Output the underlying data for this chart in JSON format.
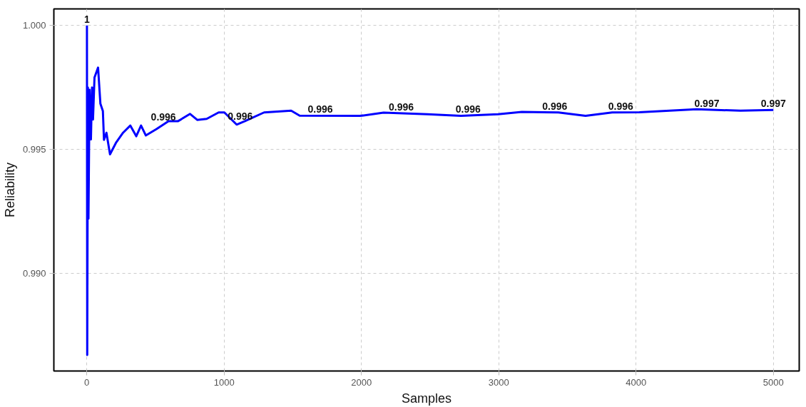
{
  "chart_data": {
    "type": "line",
    "xlabel": "Samples",
    "ylabel": "Reliability",
    "x": [
      1,
      3,
      8,
      12,
      20,
      30,
      38,
      45,
      56,
      82,
      99,
      117,
      125,
      143,
      169,
      212,
      264,
      317,
      360,
      395,
      430,
      508,
      595,
      665,
      752,
      804,
      873,
      960,
      1002,
      1091,
      1152,
      1291,
      1488,
      1550,
      1989,
      2161,
      2479,
      2725,
      2996,
      3168,
      3434,
      3632,
      3826,
      4024,
      4441,
      4760,
      5000
    ],
    "series": [
      {
        "color": "#0000ff",
        "values": [
          1.0,
          0.9867,
          0.9975,
          0.9922,
          0.9974,
          0.9954,
          0.9975,
          0.9962,
          0.9979,
          0.9983,
          0.99684,
          0.99655,
          0.99538,
          0.99567,
          0.9948,
          0.99526,
          0.99567,
          0.99596,
          0.99553,
          0.99596,
          0.99556,
          0.99582,
          0.99614,
          0.99614,
          0.99643,
          0.99619,
          0.99623,
          0.99649,
          0.99649,
          0.996,
          0.99614,
          0.99649,
          0.99656,
          0.99636,
          0.99635,
          0.99648,
          0.99642,
          0.99635,
          0.99642,
          0.99651,
          0.99649,
          0.99635,
          0.99649,
          0.9965,
          0.99662,
          0.99656,
          0.99659
        ]
      }
    ],
    "annotations": [
      {
        "text": "1",
        "x": 1,
        "y": 1.0
      },
      {
        "text": "0.996",
        "x": 558,
        "y": 0.99605
      },
      {
        "text": "0.996",
        "x": 1117,
        "y": 0.99608
      },
      {
        "text": "0.996",
        "x": 1700,
        "y": 0.99636
      },
      {
        "text": "0.996",
        "x": 2290,
        "y": 0.99645
      },
      {
        "text": "0.996",
        "x": 2777,
        "y": 0.99637
      },
      {
        "text": "0.996",
        "x": 3408,
        "y": 0.99649
      },
      {
        "text": "0.996",
        "x": 3888,
        "y": 0.99649
      },
      {
        "text": "0.997",
        "x": 4515,
        "y": 0.9966
      },
      {
        "text": "0.997",
        "x": 5000,
        "y": 0.99659
      }
    ],
    "xlim": [
      -240,
      5188
    ],
    "ylim": [
      0.98605,
      1.00067
    ],
    "xticks": [
      0,
      1000,
      2000,
      3000,
      4000,
      5000
    ],
    "yticks": [
      {
        "value": 0.99,
        "label": "0.990"
      },
      0.995,
      {
        "value": 1.0,
        "label": "1.000"
      }
    ],
    "grid": true,
    "line_style": "solid",
    "marker": "none"
  }
}
